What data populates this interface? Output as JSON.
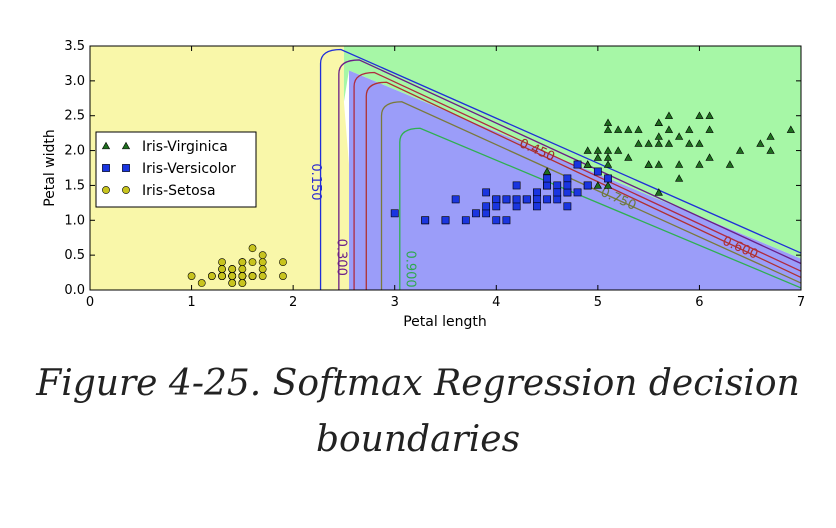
{
  "caption": {
    "line1": "Figure 4-25. Softmax Regression decision",
    "line2": "boundaries"
  },
  "chart_data": {
    "type": "scatter",
    "xlabel": "Petal length",
    "ylabel": "Petal width",
    "xlim": [
      0,
      7
    ],
    "ylim": [
      0,
      3.5
    ],
    "xticks": [
      "0",
      "1",
      "2",
      "3",
      "4",
      "5",
      "6",
      "7"
    ],
    "yticks": [
      "0.0",
      "0.5",
      "1.0",
      "1.5",
      "2.0",
      "2.5",
      "3.0",
      "3.5"
    ],
    "legend_position": "left",
    "background_regions": [
      {
        "class": "Iris-Setosa",
        "color": "#f9f7a9"
      },
      {
        "class": "Iris-Versicolor",
        "color": "#9b9df9"
      },
      {
        "class": "Iris-Virginica",
        "color": "#a6f7a6"
      }
    ],
    "contour_labels": [
      {
        "text": "0.150",
        "color": "#2a2ad0",
        "x": 2.22,
        "y": 1.55
      },
      {
        "text": "0.300",
        "color": "#6a1e88",
        "x": 2.47,
        "y": 0.47
      },
      {
        "text": "0.450",
        "color": "#a02a2a",
        "x": 4.4,
        "y": 2.0
      },
      {
        "text": "0.600",
        "color": "#b03030",
        "x": 6.4,
        "y": 0.6
      },
      {
        "text": "0.750",
        "color": "#6a7a40",
        "x": 5.2,
        "y": 1.3
      },
      {
        "text": "0.900",
        "color": "#30a850",
        "x": 3.15,
        "y": 0.3
      }
    ],
    "series": [
      {
        "name": "Iris-Virginica",
        "marker": "triangle",
        "color": "#1e6e1e",
        "points": [
          [
            6.0,
            2.5
          ],
          [
            5.1,
            1.9
          ],
          [
            5.9,
            2.1
          ],
          [
            5.6,
            1.8
          ],
          [
            5.8,
            2.2
          ],
          [
            6.6,
            2.1
          ],
          [
            4.5,
            1.7
          ],
          [
            6.3,
            1.8
          ],
          [
            5.8,
            1.8
          ],
          [
            6.1,
            2.5
          ],
          [
            5.1,
            2.0
          ],
          [
            5.3,
            1.9
          ],
          [
            5.5,
            2.1
          ],
          [
            5.0,
            2.0
          ],
          [
            5.1,
            2.4
          ],
          [
            5.3,
            2.3
          ],
          [
            5.5,
            1.8
          ],
          [
            6.7,
            2.2
          ],
          [
            6.9,
            2.3
          ],
          [
            5.0,
            1.5
          ],
          [
            5.7,
            2.3
          ],
          [
            4.9,
            2.0
          ],
          [
            6.7,
            2.0
          ],
          [
            4.9,
            1.8
          ],
          [
            5.7,
            2.1
          ],
          [
            6.0,
            1.8
          ],
          [
            4.8,
            1.8
          ],
          [
            4.9,
            1.8
          ],
          [
            5.6,
            2.1
          ],
          [
            5.8,
            1.6
          ],
          [
            6.1,
            1.9
          ],
          [
            6.4,
            2.0
          ],
          [
            5.6,
            2.2
          ],
          [
            5.1,
            1.5
          ],
          [
            5.6,
            1.4
          ],
          [
            6.1,
            2.3
          ],
          [
            5.6,
            2.4
          ],
          [
            5.5,
            1.8
          ],
          [
            4.8,
            1.8
          ],
          [
            5.4,
            2.1
          ],
          [
            5.6,
            2.4
          ],
          [
            5.1,
            2.3
          ],
          [
            5.9,
            2.3
          ],
          [
            5.7,
            2.5
          ],
          [
            5.2,
            2.3
          ],
          [
            5.0,
            1.9
          ],
          [
            5.2,
            2.0
          ],
          [
            5.4,
            2.3
          ],
          [
            5.1,
            1.8
          ],
          [
            6.0,
            2.1
          ]
        ]
      },
      {
        "name": "Iris-Versicolor",
        "marker": "square",
        "color": "#1a35e0",
        "points": [
          [
            4.7,
            1.4
          ],
          [
            4.5,
            1.5
          ],
          [
            4.9,
            1.5
          ],
          [
            4.0,
            1.3
          ],
          [
            4.6,
            1.5
          ],
          [
            4.5,
            1.3
          ],
          [
            4.7,
            1.6
          ],
          [
            3.3,
            1.0
          ],
          [
            4.6,
            1.3
          ],
          [
            3.9,
            1.4
          ],
          [
            3.5,
            1.0
          ],
          [
            4.2,
            1.5
          ],
          [
            4.0,
            1.0
          ],
          [
            4.7,
            1.4
          ],
          [
            3.6,
            1.3
          ],
          [
            4.4,
            1.4
          ],
          [
            4.5,
            1.5
          ],
          [
            4.1,
            1.0
          ],
          [
            4.5,
            1.5
          ],
          [
            3.9,
            1.1
          ],
          [
            4.8,
            1.8
          ],
          [
            4.0,
            1.3
          ],
          [
            4.9,
            1.5
          ],
          [
            4.7,
            1.2
          ],
          [
            4.3,
            1.3
          ],
          [
            4.4,
            1.4
          ],
          [
            4.8,
            1.4
          ],
          [
            5.0,
            1.7
          ],
          [
            4.5,
            1.5
          ],
          [
            3.5,
            1.0
          ],
          [
            3.8,
            1.1
          ],
          [
            3.7,
            1.0
          ],
          [
            3.9,
            1.2
          ],
          [
            5.1,
            1.6
          ],
          [
            4.5,
            1.5
          ],
          [
            4.5,
            1.6
          ],
          [
            4.7,
            1.5
          ],
          [
            4.4,
            1.3
          ],
          [
            4.1,
            1.3
          ],
          [
            4.0,
            1.3
          ],
          [
            4.4,
            1.2
          ],
          [
            4.6,
            1.4
          ],
          [
            4.0,
            1.2
          ],
          [
            3.3,
            1.0
          ],
          [
            4.2,
            1.3
          ],
          [
            4.2,
            1.2
          ],
          [
            4.2,
            1.3
          ],
          [
            4.3,
            1.3
          ],
          [
            3.0,
            1.1
          ],
          [
            4.1,
            1.3
          ]
        ]
      },
      {
        "name": "Iris-Setosa",
        "marker": "circle",
        "color": "#c8c41e",
        "points": [
          [
            1.4,
            0.2
          ],
          [
            1.4,
            0.2
          ],
          [
            1.3,
            0.2
          ],
          [
            1.5,
            0.2
          ],
          [
            1.4,
            0.2
          ],
          [
            1.7,
            0.4
          ],
          [
            1.4,
            0.3
          ],
          [
            1.5,
            0.2
          ],
          [
            1.4,
            0.2
          ],
          [
            1.5,
            0.1
          ],
          [
            1.5,
            0.2
          ],
          [
            1.6,
            0.2
          ],
          [
            1.4,
            0.1
          ],
          [
            1.1,
            0.1
          ],
          [
            1.2,
            0.2
          ],
          [
            1.5,
            0.4
          ],
          [
            1.3,
            0.4
          ],
          [
            1.4,
            0.3
          ],
          [
            1.7,
            0.3
          ],
          [
            1.5,
            0.3
          ],
          [
            1.7,
            0.2
          ],
          [
            1.5,
            0.4
          ],
          [
            1.0,
            0.2
          ],
          [
            1.7,
            0.5
          ],
          [
            1.9,
            0.2
          ],
          [
            1.6,
            0.2
          ],
          [
            1.6,
            0.4
          ],
          [
            1.5,
            0.2
          ],
          [
            1.4,
            0.2
          ],
          [
            1.6,
            0.2
          ],
          [
            1.6,
            0.2
          ],
          [
            1.5,
            0.4
          ],
          [
            1.5,
            0.1
          ],
          [
            1.4,
            0.2
          ],
          [
            1.5,
            0.2
          ],
          [
            1.2,
            0.2
          ],
          [
            1.3,
            0.2
          ],
          [
            1.4,
            0.1
          ],
          [
            1.3,
            0.2
          ],
          [
            1.5,
            0.2
          ],
          [
            1.3,
            0.3
          ],
          [
            1.3,
            0.3
          ],
          [
            1.3,
            0.2
          ],
          [
            1.6,
            0.6
          ],
          [
            1.9,
            0.4
          ],
          [
            1.4,
            0.3
          ],
          [
            1.6,
            0.2
          ],
          [
            1.4,
            0.2
          ],
          [
            1.5,
            0.2
          ],
          [
            1.4,
            0.2
          ]
        ]
      }
    ]
  }
}
